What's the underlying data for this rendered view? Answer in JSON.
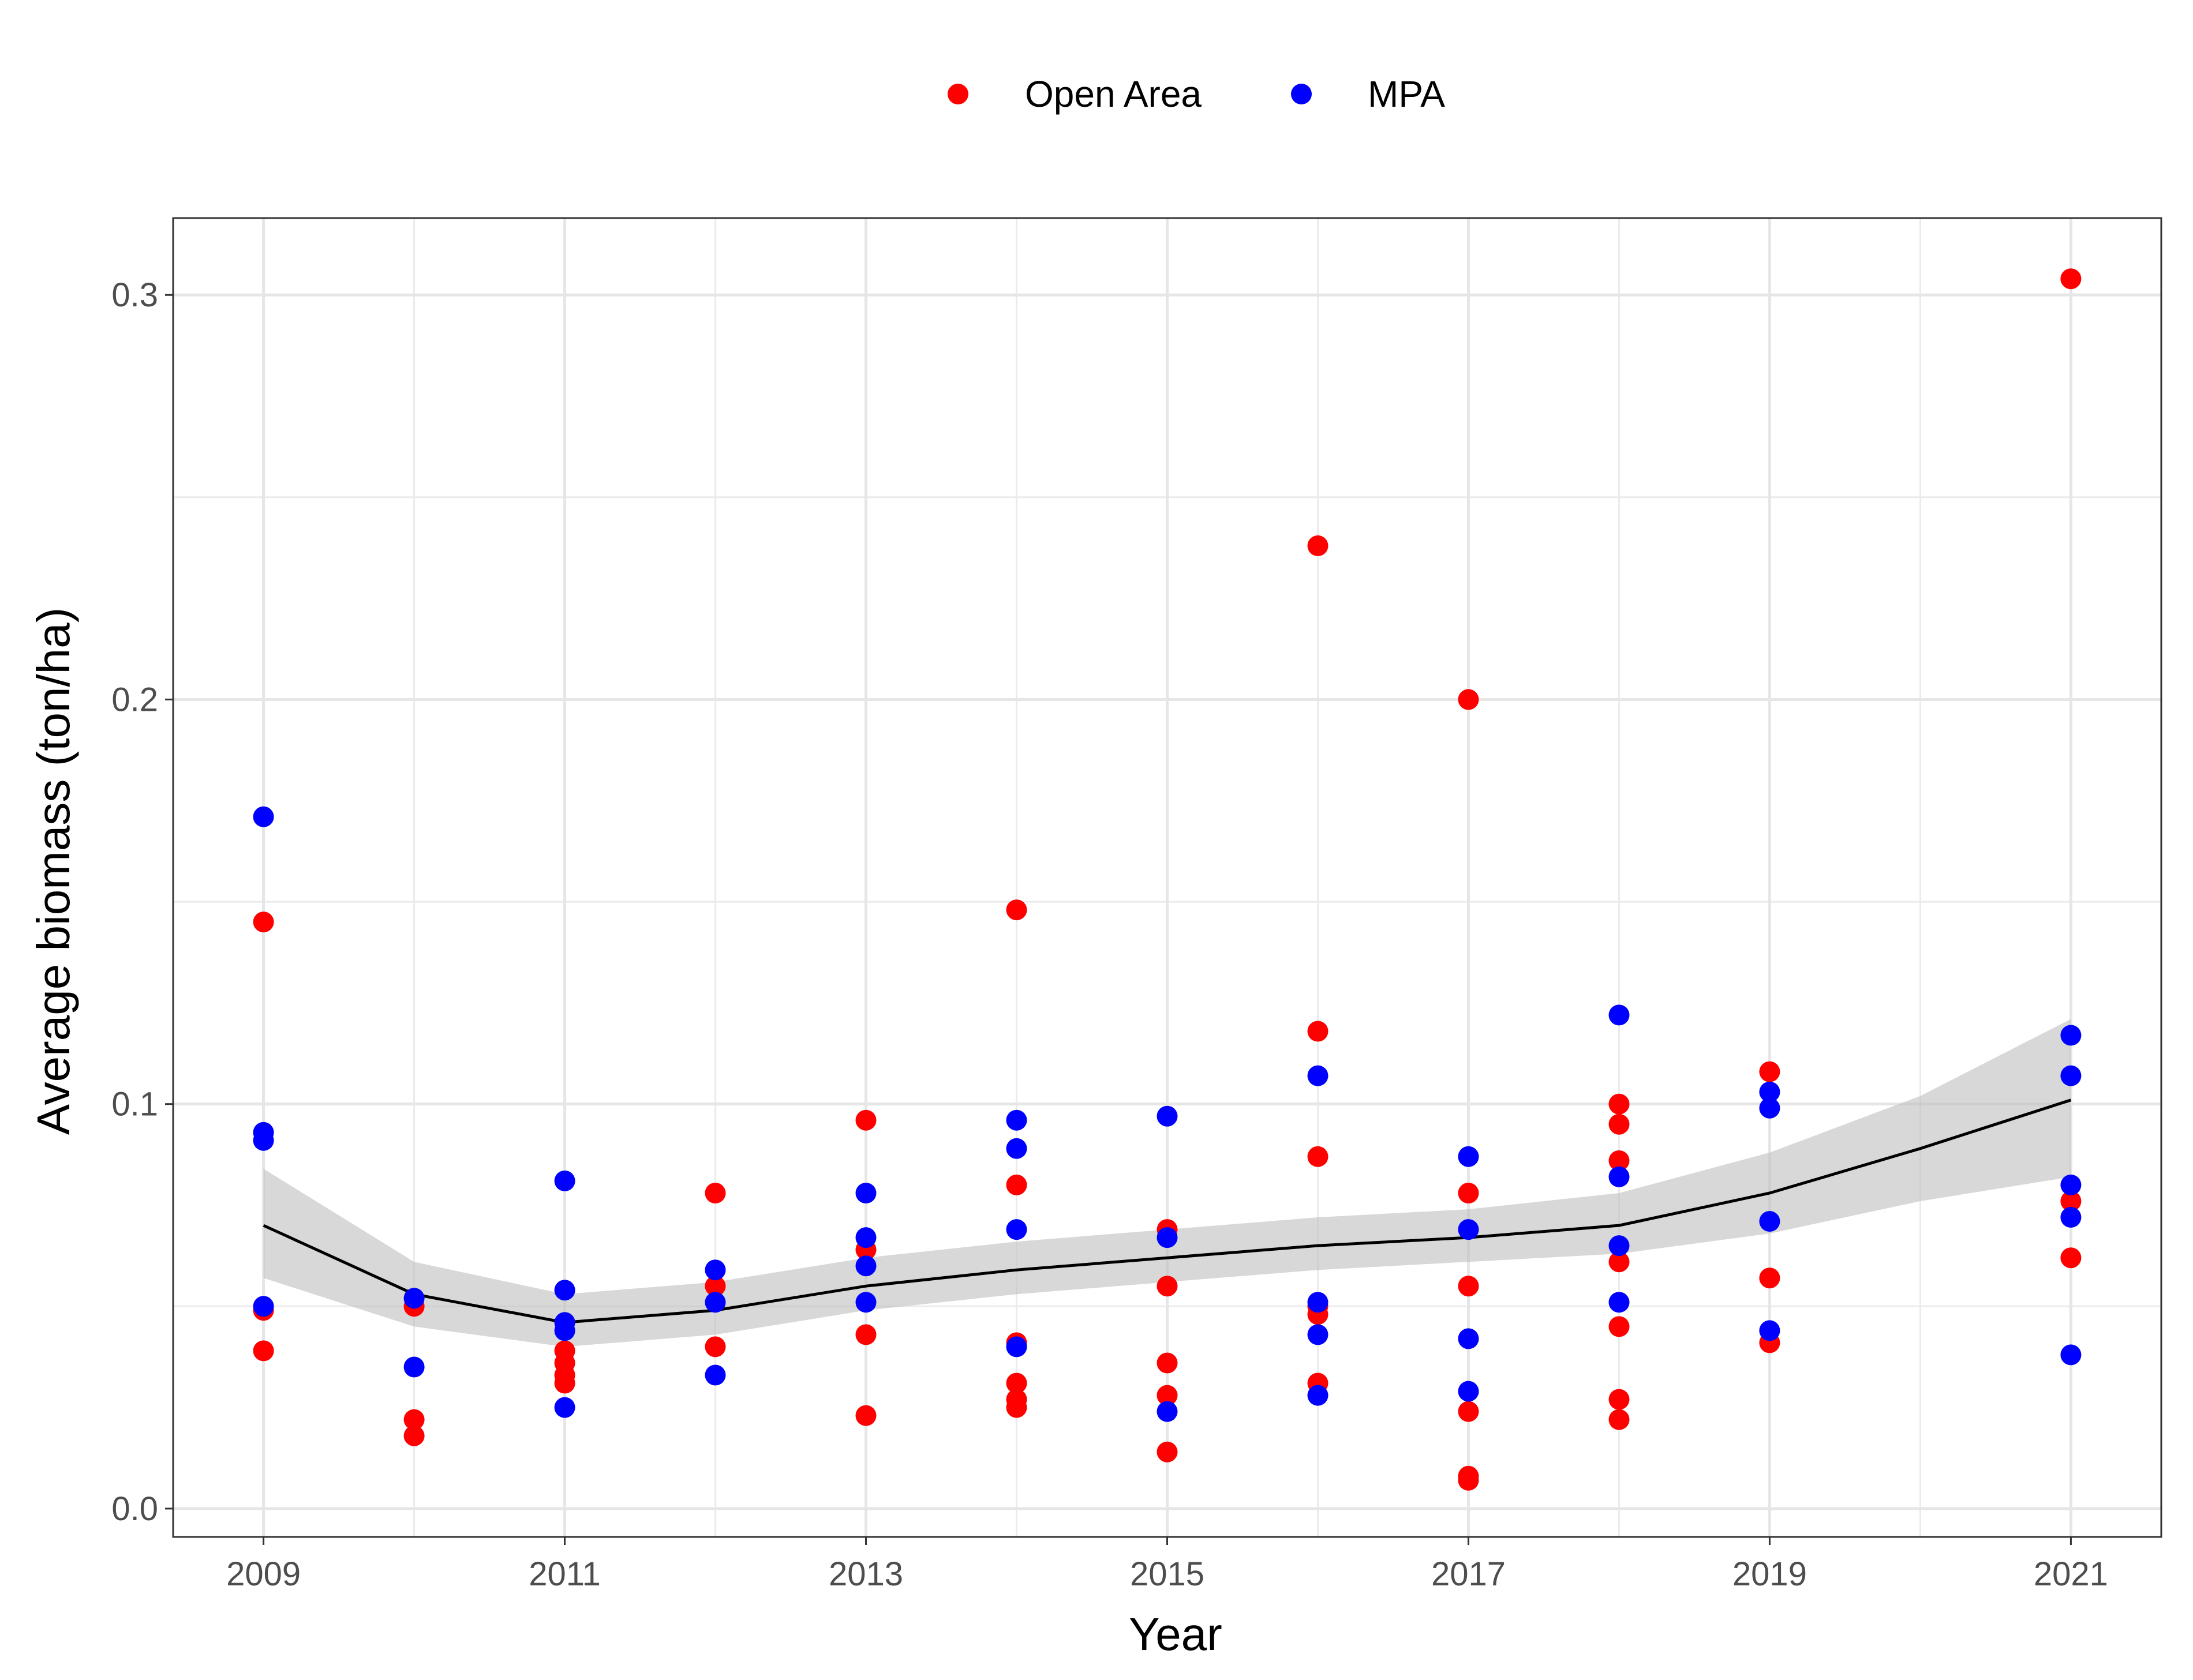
{
  "chart_data": {
    "type": "scatter",
    "title": "",
    "xlabel": "Year",
    "ylabel": "Average biomass (ton/ha)",
    "xlim": [
      2008.4,
      2021.6
    ],
    "ylim": [
      -0.007,
      0.319
    ],
    "x_ticks": [
      2009,
      2011,
      2013,
      2015,
      2017,
      2019,
      2021
    ],
    "x_tick_labels": [
      "2009",
      "2011",
      "2013",
      "2015",
      "2017",
      "2019",
      "2021"
    ],
    "y_ticks": [
      0.0,
      0.1,
      0.2,
      0.3
    ],
    "y_tick_labels": [
      "0.0",
      "0.1",
      "0.2",
      "0.3"
    ],
    "grid": true,
    "legend_position": "top",
    "legend_labels": [
      "Open Area",
      "MPA"
    ],
    "series": [
      {
        "name": "Open Area",
        "color": "#ff0000",
        "points": [
          [
            2009,
            0.145
          ],
          [
            2009,
            0.049
          ],
          [
            2009,
            0.039
          ],
          [
            2010,
            0.05
          ],
          [
            2010,
            0.022
          ],
          [
            2010,
            0.018
          ],
          [
            2011,
            0.039
          ],
          [
            2011,
            0.036
          ],
          [
            2011,
            0.033
          ],
          [
            2011,
            0.031
          ],
          [
            2012,
            0.078
          ],
          [
            2012,
            0.055
          ],
          [
            2012,
            0.04
          ],
          [
            2013,
            0.096
          ],
          [
            2013,
            0.064
          ],
          [
            2013,
            0.043
          ],
          [
            2013,
            0.023
          ],
          [
            2014,
            0.148
          ],
          [
            2014,
            0.08
          ],
          [
            2014,
            0.041
          ],
          [
            2014,
            0.031
          ],
          [
            2014,
            0.027
          ],
          [
            2014,
            0.025
          ],
          [
            2015,
            0.069
          ],
          [
            2015,
            0.055
          ],
          [
            2015,
            0.036
          ],
          [
            2015,
            0.028
          ],
          [
            2015,
            0.014
          ],
          [
            2016,
            0.238
          ],
          [
            2016,
            0.118
          ],
          [
            2016,
            0.087
          ],
          [
            2016,
            0.05
          ],
          [
            2016,
            0.048
          ],
          [
            2016,
            0.031
          ],
          [
            2017,
            0.2
          ],
          [
            2017,
            0.078
          ],
          [
            2017,
            0.055
          ],
          [
            2017,
            0.024
          ],
          [
            2017,
            0.008
          ],
          [
            2017,
            0.007
          ],
          [
            2018,
            0.1
          ],
          [
            2018,
            0.095
          ],
          [
            2018,
            0.086
          ],
          [
            2018,
            0.061
          ],
          [
            2018,
            0.045
          ],
          [
            2018,
            0.027
          ],
          [
            2018,
            0.022
          ],
          [
            2019,
            0.108
          ],
          [
            2019,
            0.057
          ],
          [
            2019,
            0.041
          ],
          [
            2021,
            0.304
          ],
          [
            2021,
            0.076
          ],
          [
            2021,
            0.062
          ]
        ]
      },
      {
        "name": "MPA",
        "color": "#0000ff",
        "points": [
          [
            2009,
            0.171
          ],
          [
            2009,
            0.093
          ],
          [
            2009,
            0.091
          ],
          [
            2009,
            0.05
          ],
          [
            2010,
            0.052
          ],
          [
            2010,
            0.035
          ],
          [
            2011,
            0.081
          ],
          [
            2011,
            0.054
          ],
          [
            2011,
            0.046
          ],
          [
            2011,
            0.044
          ],
          [
            2011,
            0.025
          ],
          [
            2012,
            0.059
          ],
          [
            2012,
            0.051
          ],
          [
            2012,
            0.033
          ],
          [
            2013,
            0.078
          ],
          [
            2013,
            0.067
          ],
          [
            2013,
            0.06
          ],
          [
            2013,
            0.051
          ],
          [
            2014,
            0.096
          ],
          [
            2014,
            0.089
          ],
          [
            2014,
            0.069
          ],
          [
            2014,
            0.04
          ],
          [
            2015,
            0.097
          ],
          [
            2015,
            0.067
          ],
          [
            2015,
            0.024
          ],
          [
            2016,
            0.107
          ],
          [
            2016,
            0.051
          ],
          [
            2016,
            0.043
          ],
          [
            2016,
            0.028
          ],
          [
            2017,
            0.087
          ],
          [
            2017,
            0.069
          ],
          [
            2017,
            0.042
          ],
          [
            2017,
            0.029
          ],
          [
            2018,
            0.122
          ],
          [
            2018,
            0.082
          ],
          [
            2018,
            0.065
          ],
          [
            2018,
            0.051
          ],
          [
            2019,
            0.103
          ],
          [
            2019,
            0.099
          ],
          [
            2019,
            0.071
          ],
          [
            2019,
            0.044
          ],
          [
            2021,
            0.117
          ],
          [
            2021,
            0.107
          ],
          [
            2021,
            0.08
          ],
          [
            2021,
            0.072
          ],
          [
            2021,
            0.038
          ]
        ]
      }
    ],
    "trend": {
      "color": "#000000",
      "band_color": "#bebebe",
      "x": [
        2009,
        2010,
        2011,
        2012,
        2013,
        2014,
        2015,
        2016,
        2017,
        2018,
        2019,
        2020,
        2021
      ],
      "y": [
        0.07,
        0.053,
        0.046,
        0.049,
        0.055,
        0.059,
        0.062,
        0.065,
        0.067,
        0.07,
        0.078,
        0.089,
        0.101
      ],
      "lower": [
        0.057,
        0.045,
        0.04,
        0.043,
        0.049,
        0.053,
        0.056,
        0.059,
        0.061,
        0.063,
        0.068,
        0.076,
        0.082
      ],
      "upper": [
        0.084,
        0.061,
        0.053,
        0.056,
        0.062,
        0.066,
        0.069,
        0.072,
        0.074,
        0.078,
        0.088,
        0.102,
        0.121
      ]
    }
  }
}
